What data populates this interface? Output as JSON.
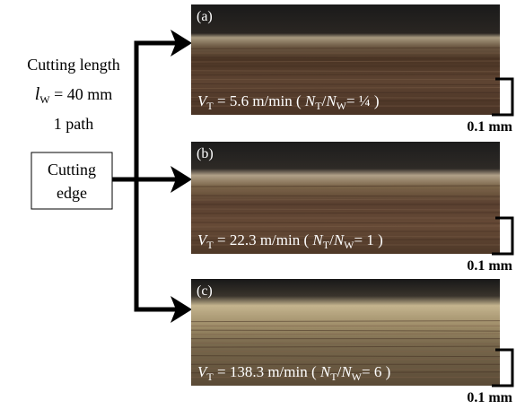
{
  "left": {
    "cutting_length": "Cutting length",
    "lw": [
      "l",
      "W",
      " = 40 mm"
    ],
    "path": "1 path",
    "edge_box": [
      "Cutting",
      "edge"
    ]
  },
  "panels": [
    {
      "label": "(a)",
      "caption": [
        "V",
        "T",
        " = 5.6 m/min ( ",
        "N",
        "T",
        "/",
        "N",
        "W",
        "= ¼ )"
      ],
      "scale": "0.1 mm"
    },
    {
      "label": "(b)",
      "caption": [
        "V",
        "T",
        " = 22.3 m/min  ( ",
        "N",
        "T",
        "/",
        "N",
        "W",
        "= 1 )"
      ],
      "scale": "0.1 mm"
    },
    {
      "label": "(c)",
      "caption": [
        "V",
        "T",
        " = 138.3 m/min  ( ",
        "N",
        "T",
        "/",
        "N",
        "W",
        "= 6 )"
      ],
      "scale": "0.1 mm"
    }
  ]
}
